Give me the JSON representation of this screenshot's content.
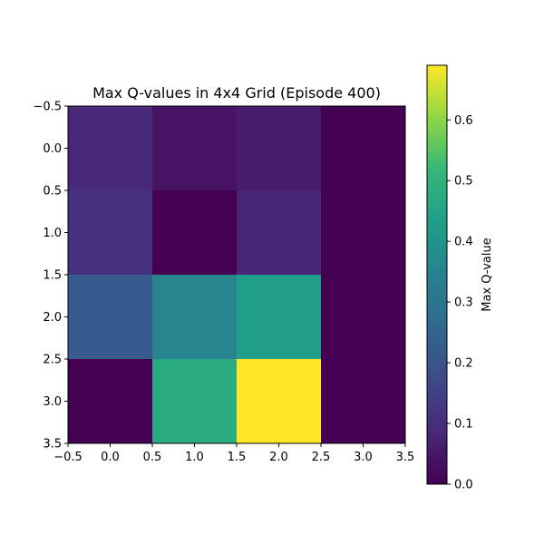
{
  "chart_data": {
    "type": "heatmap",
    "title": "Max Q-values in 4x4 Grid (Episode 400)",
    "rows": 4,
    "cols": 4,
    "values": [
      [
        0.09,
        0.04,
        0.06,
        0.0
      ],
      [
        0.11,
        0.0,
        0.08,
        0.0
      ],
      [
        0.22,
        0.35,
        0.43,
        0.0
      ],
      [
        0.0,
        0.48,
        0.69,
        0.0
      ]
    ],
    "xlim": [
      -0.5,
      3.5
    ],
    "ylim": [
      3.5,
      -0.5
    ],
    "x_ticks": [
      "−0.5",
      "0.0",
      "0.5",
      "1.0",
      "1.5",
      "2.0",
      "2.5",
      "3.0",
      "3.5"
    ],
    "y_ticks": [
      "−0.5",
      "0.0",
      "0.5",
      "1.0",
      "1.5",
      "2.0",
      "2.5",
      "3.0",
      "3.5"
    ],
    "colormap": "viridis",
    "colorbar": {
      "label": "Max Q-value",
      "min": 0.0,
      "max": 0.69,
      "ticks": [
        "0.0",
        "0.1",
        "0.2",
        "0.3",
        "0.4",
        "0.5",
        "0.6"
      ]
    },
    "grid": false
  }
}
